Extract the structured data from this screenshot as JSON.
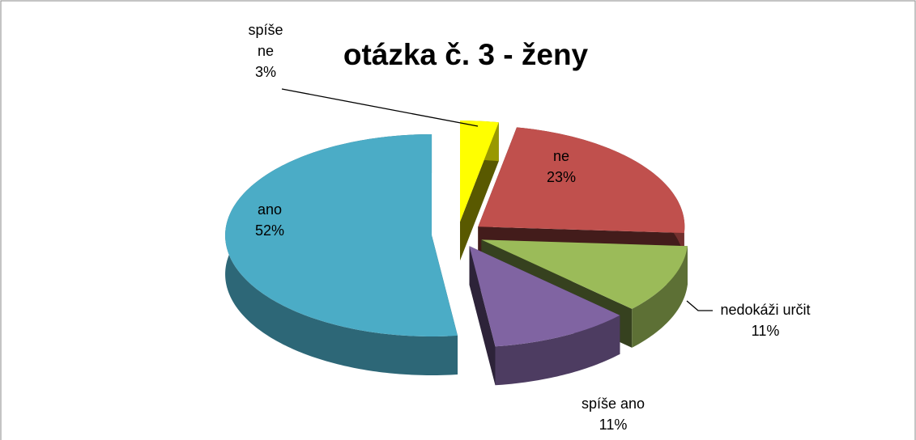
{
  "chart_data": {
    "type": "pie3d",
    "title": "otázka č. 3 - ženy",
    "categories": [
      "spíše ne",
      "ne",
      "nedokáži určit",
      "spíše ano",
      "ano"
    ],
    "values": [
      3,
      23,
      11,
      11,
      52
    ],
    "value_labels": [
      "3%",
      "23%",
      "11%",
      "11%",
      "52%"
    ],
    "colors": [
      "#ffff00",
      "#c0504d",
      "#9bbb59",
      "#8064a2",
      "#4bacc6"
    ]
  }
}
